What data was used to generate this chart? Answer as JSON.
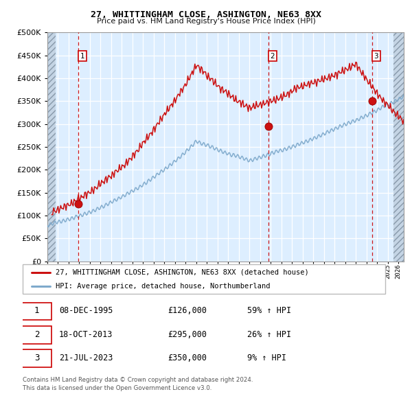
{
  "title": "27, WHITTINGHAM CLOSE, ASHINGTON, NE63 8XX",
  "subtitle": "Price paid vs. HM Land Registry's House Price Index (HPI)",
  "legend_line1": "27, WHITTINGHAM CLOSE, ASHINGTON, NE63 8XX (detached house)",
  "legend_line2": "HPI: Average price, detached house, Northumberland",
  "footnote1": "Contains HM Land Registry data © Crown copyright and database right 2024.",
  "footnote2": "This data is licensed under the Open Government Licence v3.0.",
  "transactions": [
    {
      "num": 1,
      "date": "08-DEC-1995",
      "price": 126000,
      "pct": "59%",
      "dir": "↑",
      "x_year": 1995.93
    },
    {
      "num": 2,
      "date": "18-OCT-2013",
      "price": 295000,
      "pct": "26%",
      "dir": "↑",
      "x_year": 2013.79
    },
    {
      "num": 3,
      "date": "21-JUL-2023",
      "price": 350000,
      "pct": "9%",
      "dir": "↑",
      "x_year": 2023.55
    }
  ],
  "hpi_color": "#7faacc",
  "price_color": "#cc1111",
  "bg_color": "#ddeeff",
  "grid_color": "#ffffff",
  "vline_color": "#cc0000",
  "ylim": [
    0,
    500000
  ],
  "xlim_start": 1993.0,
  "xlim_end": 2026.5,
  "hatch_left_end": 1993.75,
  "hatch_right_start": 2025.5
}
